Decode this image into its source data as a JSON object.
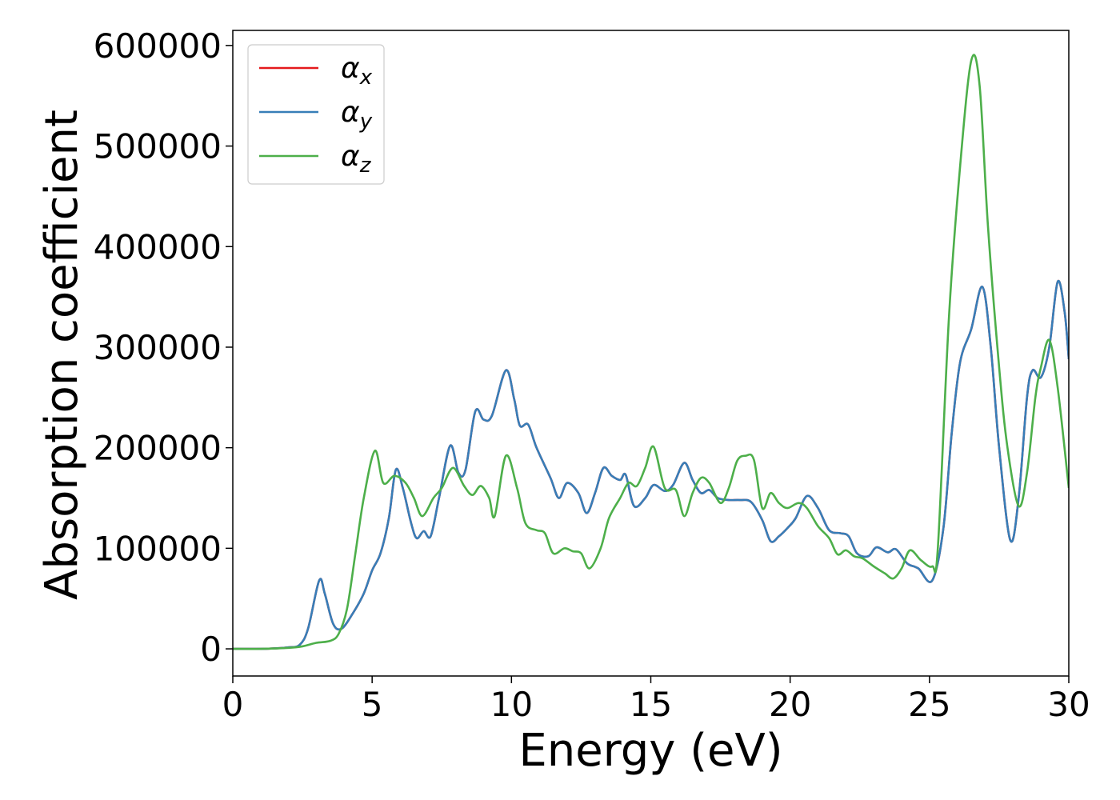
{
  "chart_data": {
    "type": "line",
    "title": "",
    "xlabel": "Energy (eV)",
    "ylabel": "Absorption coefficient",
    "xlim": [
      0,
      30
    ],
    "ylim": [
      -27000,
      615000
    ],
    "xticks": [
      0,
      5,
      10,
      15,
      20,
      25,
      30
    ],
    "yticks": [
      0,
      100000,
      200000,
      300000,
      400000,
      500000,
      600000
    ],
    "xtick_labels": [
      "0",
      "5",
      "10",
      "15",
      "20",
      "25",
      "30"
    ],
    "ytick_labels": [
      "0",
      "100000",
      "200000",
      "300000",
      "400000",
      "500000",
      "600000"
    ],
    "grid": false,
    "legend_position": "top-left",
    "series": [
      {
        "name": "α",
        "subscript": "x",
        "color": "#e41a1c",
        "points": [
          [
            0,
            0
          ],
          [
            1,
            0
          ],
          [
            1.5,
            500
          ],
          [
            2,
            1500
          ],
          [
            2.4,
            4000
          ],
          [
            2.7,
            20000
          ],
          [
            3.1,
            68000
          ],
          [
            3.3,
            55000
          ],
          [
            3.6,
            25000
          ],
          [
            3.9,
            20000
          ],
          [
            4.3,
            35000
          ],
          [
            4.7,
            55000
          ],
          [
            5.0,
            78000
          ],
          [
            5.3,
            95000
          ],
          [
            5.6,
            130000
          ],
          [
            5.85,
            178000
          ],
          [
            6.1,
            160000
          ],
          [
            6.4,
            125000
          ],
          [
            6.6,
            110000
          ],
          [
            6.85,
            117000
          ],
          [
            7.1,
            112000
          ],
          [
            7.4,
            150000
          ],
          [
            7.8,
            202000
          ],
          [
            8.1,
            175000
          ],
          [
            8.35,
            178000
          ],
          [
            8.7,
            236000
          ],
          [
            9.0,
            228000
          ],
          [
            9.3,
            232000
          ],
          [
            9.8,
            277000
          ],
          [
            10.1,
            248000
          ],
          [
            10.3,
            222000
          ],
          [
            10.6,
            223000
          ],
          [
            10.9,
            200000
          ],
          [
            11.4,
            170000
          ],
          [
            11.7,
            150000
          ],
          [
            12.0,
            165000
          ],
          [
            12.4,
            155000
          ],
          [
            12.7,
            135000
          ],
          [
            13.0,
            155000
          ],
          [
            13.3,
            180000
          ],
          [
            13.6,
            172000
          ],
          [
            13.9,
            168000
          ],
          [
            14.1,
            173000
          ],
          [
            14.4,
            142000
          ],
          [
            14.8,
            150000
          ],
          [
            15.1,
            163000
          ],
          [
            15.5,
            157000
          ],
          [
            15.8,
            163000
          ],
          [
            16.2,
            185000
          ],
          [
            16.5,
            168000
          ],
          [
            16.8,
            155000
          ],
          [
            17.1,
            158000
          ],
          [
            17.4,
            150000
          ],
          [
            17.8,
            148000
          ],
          [
            18.2,
            148000
          ],
          [
            18.6,
            146000
          ],
          [
            19.0,
            128000
          ],
          [
            19.3,
            107000
          ],
          [
            19.6,
            112000
          ],
          [
            19.9,
            120000
          ],
          [
            20.2,
            130000
          ],
          [
            20.6,
            152000
          ],
          [
            21.0,
            140000
          ],
          [
            21.4,
            118000
          ],
          [
            21.8,
            115000
          ],
          [
            22.1,
            112000
          ],
          [
            22.4,
            95000
          ],
          [
            22.8,
            92000
          ],
          [
            23.1,
            101000
          ],
          [
            23.5,
            96000
          ],
          [
            23.8,
            99000
          ],
          [
            24.2,
            85000
          ],
          [
            24.6,
            80000
          ],
          [
            25.1,
            68000
          ],
          [
            25.5,
            120000
          ],
          [
            25.8,
            215000
          ],
          [
            26.1,
            285000
          ],
          [
            26.5,
            318000
          ],
          [
            26.9,
            360000
          ],
          [
            27.2,
            300000
          ],
          [
            27.5,
            200000
          ],
          [
            27.9,
            108000
          ],
          [
            28.2,
            150000
          ],
          [
            28.5,
            250000
          ],
          [
            28.7,
            277000
          ],
          [
            29.0,
            270000
          ],
          [
            29.3,
            300000
          ],
          [
            29.6,
            365000
          ],
          [
            29.85,
            335000
          ],
          [
            30,
            288000
          ]
        ]
      },
      {
        "name": "α",
        "subscript": "y",
        "color": "#377eb8",
        "points": [
          [
            0,
            0
          ],
          [
            1,
            0
          ],
          [
            1.5,
            500
          ],
          [
            2,
            1500
          ],
          [
            2.4,
            4000
          ],
          [
            2.7,
            20000
          ],
          [
            3.1,
            68000
          ],
          [
            3.3,
            55000
          ],
          [
            3.6,
            25000
          ],
          [
            3.9,
            20000
          ],
          [
            4.3,
            35000
          ],
          [
            4.7,
            55000
          ],
          [
            5.0,
            78000
          ],
          [
            5.3,
            95000
          ],
          [
            5.6,
            130000
          ],
          [
            5.85,
            178000
          ],
          [
            6.1,
            160000
          ],
          [
            6.4,
            125000
          ],
          [
            6.6,
            110000
          ],
          [
            6.85,
            117000
          ],
          [
            7.1,
            112000
          ],
          [
            7.4,
            150000
          ],
          [
            7.8,
            202000
          ],
          [
            8.1,
            175000
          ],
          [
            8.35,
            178000
          ],
          [
            8.7,
            236000
          ],
          [
            9.0,
            228000
          ],
          [
            9.3,
            232000
          ],
          [
            9.8,
            277000
          ],
          [
            10.1,
            248000
          ],
          [
            10.3,
            222000
          ],
          [
            10.6,
            223000
          ],
          [
            10.9,
            200000
          ],
          [
            11.4,
            170000
          ],
          [
            11.7,
            150000
          ],
          [
            12.0,
            165000
          ],
          [
            12.4,
            155000
          ],
          [
            12.7,
            135000
          ],
          [
            13.0,
            155000
          ],
          [
            13.3,
            180000
          ],
          [
            13.6,
            172000
          ],
          [
            13.9,
            168000
          ],
          [
            14.1,
            173000
          ],
          [
            14.4,
            142000
          ],
          [
            14.8,
            150000
          ],
          [
            15.1,
            163000
          ],
          [
            15.5,
            157000
          ],
          [
            15.8,
            163000
          ],
          [
            16.2,
            185000
          ],
          [
            16.5,
            168000
          ],
          [
            16.8,
            155000
          ],
          [
            17.1,
            158000
          ],
          [
            17.4,
            150000
          ],
          [
            17.8,
            148000
          ],
          [
            18.2,
            148000
          ],
          [
            18.6,
            146000
          ],
          [
            19.0,
            128000
          ],
          [
            19.3,
            107000
          ],
          [
            19.6,
            112000
          ],
          [
            19.9,
            120000
          ],
          [
            20.2,
            130000
          ],
          [
            20.6,
            152000
          ],
          [
            21.0,
            140000
          ],
          [
            21.4,
            118000
          ],
          [
            21.8,
            115000
          ],
          [
            22.1,
            112000
          ],
          [
            22.4,
            95000
          ],
          [
            22.8,
            92000
          ],
          [
            23.1,
            101000
          ],
          [
            23.5,
            96000
          ],
          [
            23.8,
            99000
          ],
          [
            24.2,
            85000
          ],
          [
            24.6,
            80000
          ],
          [
            25.1,
            68000
          ],
          [
            25.5,
            120000
          ],
          [
            25.8,
            215000
          ],
          [
            26.1,
            285000
          ],
          [
            26.5,
            318000
          ],
          [
            26.9,
            360000
          ],
          [
            27.2,
            300000
          ],
          [
            27.5,
            200000
          ],
          [
            27.9,
            108000
          ],
          [
            28.2,
            150000
          ],
          [
            28.5,
            250000
          ],
          [
            28.7,
            277000
          ],
          [
            29.0,
            270000
          ],
          [
            29.3,
            300000
          ],
          [
            29.6,
            365000
          ],
          [
            29.85,
            335000
          ],
          [
            30,
            288000
          ]
        ]
      },
      {
        "name": "α",
        "subscript": "z",
        "color": "#4daf4a",
        "points": [
          [
            0,
            0
          ],
          [
            1,
            0
          ],
          [
            2,
            1000
          ],
          [
            2.5,
            2500
          ],
          [
            3.0,
            6000
          ],
          [
            3.5,
            8000
          ],
          [
            3.8,
            15000
          ],
          [
            4.1,
            40000
          ],
          [
            4.4,
            95000
          ],
          [
            4.7,
            150000
          ],
          [
            5.1,
            197000
          ],
          [
            5.4,
            165000
          ],
          [
            5.8,
            172000
          ],
          [
            6.2,
            165000
          ],
          [
            6.5,
            150000
          ],
          [
            6.8,
            132000
          ],
          [
            7.2,
            150000
          ],
          [
            7.5,
            160000
          ],
          [
            7.9,
            180000
          ],
          [
            8.3,
            162000
          ],
          [
            8.6,
            153000
          ],
          [
            8.9,
            162000
          ],
          [
            9.2,
            150000
          ],
          [
            9.4,
            132000
          ],
          [
            9.8,
            192000
          ],
          [
            10.2,
            160000
          ],
          [
            10.5,
            125000
          ],
          [
            10.9,
            118000
          ],
          [
            11.2,
            115000
          ],
          [
            11.5,
            95000
          ],
          [
            11.9,
            100000
          ],
          [
            12.2,
            97000
          ],
          [
            12.5,
            95000
          ],
          [
            12.8,
            80000
          ],
          [
            13.2,
            100000
          ],
          [
            13.5,
            130000
          ],
          [
            13.9,
            150000
          ],
          [
            14.2,
            165000
          ],
          [
            14.5,
            162000
          ],
          [
            14.8,
            180000
          ],
          [
            15.1,
            201000
          ],
          [
            15.5,
            160000
          ],
          [
            15.9,
            158000
          ],
          [
            16.2,
            132000
          ],
          [
            16.5,
            155000
          ],
          [
            16.8,
            170000
          ],
          [
            17.1,
            165000
          ],
          [
            17.5,
            145000
          ],
          [
            17.8,
            160000
          ],
          [
            18.1,
            187000
          ],
          [
            18.4,
            192000
          ],
          [
            18.7,
            188000
          ],
          [
            19.0,
            140000
          ],
          [
            19.3,
            155000
          ],
          [
            19.6,
            145000
          ],
          [
            19.9,
            140000
          ],
          [
            20.3,
            145000
          ],
          [
            20.6,
            140000
          ],
          [
            21.0,
            122000
          ],
          [
            21.4,
            110000
          ],
          [
            21.7,
            94000
          ],
          [
            22.0,
            98000
          ],
          [
            22.3,
            92000
          ],
          [
            22.6,
            90000
          ],
          [
            23.0,
            82000
          ],
          [
            23.4,
            75000
          ],
          [
            23.7,
            70000
          ],
          [
            24.0,
            80000
          ],
          [
            24.3,
            98000
          ],
          [
            24.7,
            88000
          ],
          [
            25.1,
            82000
          ],
          [
            25.3,
            100000
          ],
          [
            25.7,
            330000
          ],
          [
            26.1,
            480000
          ],
          [
            26.5,
            585000
          ],
          [
            26.8,
            560000
          ],
          [
            27.1,
            420000
          ],
          [
            27.5,
            280000
          ],
          [
            27.8,
            200000
          ],
          [
            28.2,
            142000
          ],
          [
            28.5,
            175000
          ],
          [
            28.8,
            250000
          ],
          [
            29.0,
            280000
          ],
          [
            29.3,
            307000
          ],
          [
            29.6,
            260000
          ],
          [
            30,
            160000
          ]
        ]
      }
    ]
  }
}
